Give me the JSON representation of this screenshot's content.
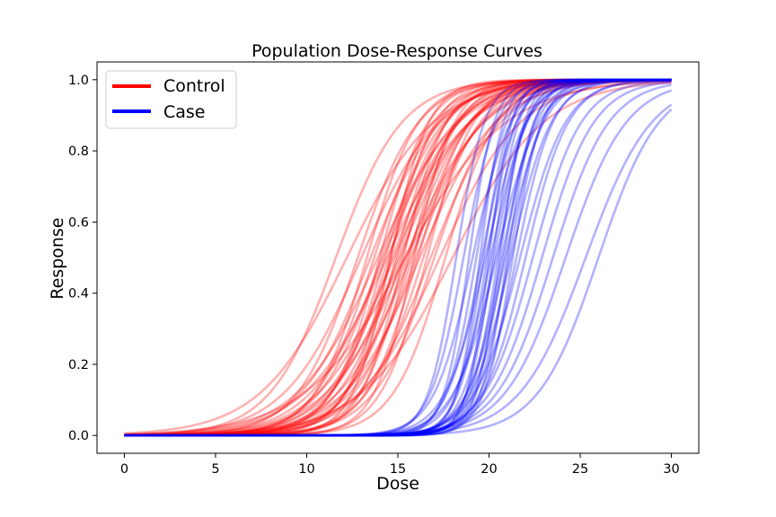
{
  "chart_data": {
    "type": "line",
    "title": "Population Dose-Response Curves",
    "xlabel": "Dose",
    "ylabel": "Response",
    "xlim": [
      -1.5,
      31.5
    ],
    "ylim": [
      -0.05,
      1.05
    ],
    "x_ticks": [
      0,
      5,
      10,
      15,
      20,
      25,
      30
    ],
    "x_tick_labels": [
      "0",
      "5",
      "10",
      "15",
      "20",
      "25",
      "30"
    ],
    "y_ticks": [
      0.0,
      0.2,
      0.4,
      0.6,
      0.8,
      1.0
    ],
    "y_tick_labels": [
      "0.0",
      "0.2",
      "0.4",
      "0.6",
      "0.8",
      "1.0"
    ],
    "x_range": [
      0,
      30
    ],
    "grid": false,
    "legend_position": "top-left",
    "model": "logistic",
    "series": [
      {
        "name": "Control",
        "color": "#ff0000",
        "ec50": [
          11.6,
          12.2,
          12.8,
          13.0,
          13.3,
          13.5,
          13.7,
          13.9,
          14.0,
          14.1,
          14.2,
          14.3,
          14.4,
          14.5,
          14.6,
          14.7,
          14.8,
          14.9,
          15.0,
          15.1,
          15.2,
          15.3,
          15.4,
          15.5,
          15.6,
          15.7,
          15.8,
          15.9,
          16.0,
          16.1,
          16.2,
          16.4,
          16.6,
          16.8,
          17.0,
          17.3,
          17.6,
          18.0,
          14.6,
          15.4
        ],
        "slope": [
          0.55,
          0.42,
          0.6,
          0.47,
          0.7,
          0.52,
          0.62,
          0.45,
          0.75,
          0.58,
          0.5,
          0.68,
          0.44,
          0.63,
          0.8,
          0.55,
          0.48,
          0.72,
          0.6,
          0.52,
          0.66,
          0.85,
          0.46,
          0.58,
          0.74,
          0.5,
          0.62,
          0.9,
          0.55,
          0.7,
          0.48,
          0.64,
          0.78,
          0.52,
          0.6,
          0.45,
          0.7,
          0.4,
          0.95,
          0.36
        ]
      },
      {
        "name": "Case",
        "color": "#0000ff",
        "ec50": [
          18.2,
          18.6,
          18.9,
          19.1,
          19.3,
          19.5,
          19.6,
          19.7,
          19.8,
          19.9,
          20.0,
          20.1,
          20.2,
          20.3,
          20.4,
          20.5,
          20.6,
          20.7,
          20.8,
          20.9,
          21.0,
          21.1,
          21.2,
          21.3,
          21.5,
          21.7,
          22.0,
          22.4,
          22.9,
          23.5,
          24.2,
          25.3,
          26.0
        ],
        "slope": [
          1.3,
          1.1,
          1.45,
          0.95,
          1.2,
          1.55,
          1.05,
          1.35,
          0.9,
          1.25,
          1.6,
          1.0,
          1.4,
          1.15,
          0.85,
          1.3,
          1.5,
          1.05,
          1.2,
          0.95,
          1.35,
          1.1,
          0.9,
          1.25,
          1.0,
          0.8,
          0.85,
          0.75,
          0.7,
          0.65,
          0.6,
          0.55,
          0.6
        ]
      }
    ]
  }
}
